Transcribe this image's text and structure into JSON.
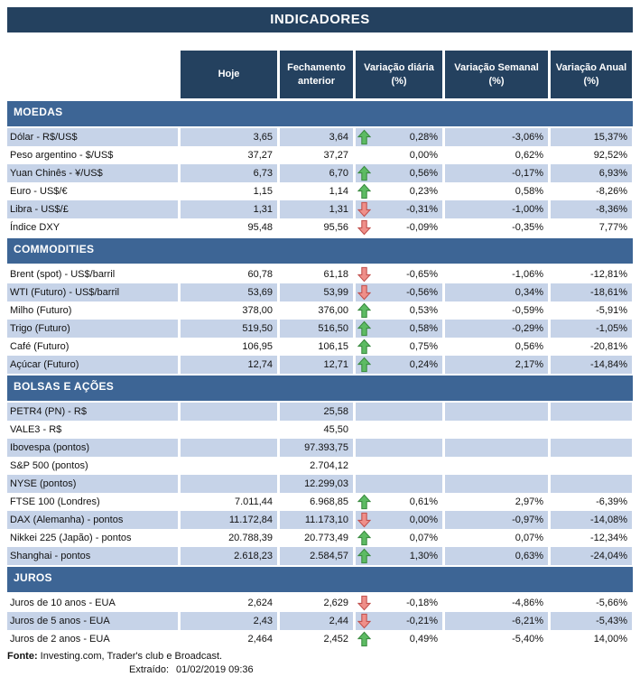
{
  "title": "INDICADORES",
  "columns": [
    "Hoje",
    "Fechamento anterior",
    "Variação diária (%)",
    "Variação Semanal (%)",
    "Variação Anual (%)"
  ],
  "sections": [
    {
      "name": "MOEDAS",
      "rows": [
        {
          "label": "Dólar - R$/US$",
          "hoje": "3,65",
          "fechamento": "3,64",
          "arrow": "up",
          "diaria": "0,28%",
          "semanal": "-3,06%",
          "anual": "15,37%"
        },
        {
          "label": "Peso argentino - $/US$",
          "hoje": "37,27",
          "fechamento": "37,27",
          "arrow": null,
          "diaria": "0,00%",
          "semanal": "0,62%",
          "anual": "92,52%"
        },
        {
          "label": "Yuan Chinês - ¥/US$",
          "hoje": "6,73",
          "fechamento": "6,70",
          "arrow": "up",
          "diaria": "0,56%",
          "semanal": "-0,17%",
          "anual": "6,93%"
        },
        {
          "label": "Euro - US$/€",
          "hoje": "1,15",
          "fechamento": "1,14",
          "arrow": "up",
          "diaria": "0,23%",
          "semanal": "0,58%",
          "anual": "-8,26%"
        },
        {
          "label": "Libra - US$/£",
          "hoje": "1,31",
          "fechamento": "1,31",
          "arrow": "down",
          "diaria": "-0,31%",
          "semanal": "-1,00%",
          "anual": "-8,36%"
        },
        {
          "label": "Índice DXY",
          "hoje": "95,48",
          "fechamento": "95,56",
          "arrow": "down",
          "diaria": "-0,09%",
          "semanal": "-0,35%",
          "anual": "7,77%"
        }
      ]
    },
    {
      "name": "COMMODITIES",
      "rows": [
        {
          "label": "Brent (spot) - US$/barril",
          "hoje": "60,78",
          "fechamento": "61,18",
          "arrow": "down",
          "diaria": "-0,65%",
          "semanal": "-1,06%",
          "anual": "-12,81%"
        },
        {
          "label": "WTI (Futuro) - US$/barril",
          "hoje": "53,69",
          "fechamento": "53,99",
          "arrow": "down",
          "diaria": "-0,56%",
          "semanal": "0,34%",
          "anual": "-18,61%"
        },
        {
          "label": "Milho (Futuro)",
          "hoje": "378,00",
          "fechamento": "376,00",
          "arrow": "up",
          "diaria": "0,53%",
          "semanal": "-0,59%",
          "anual": "-5,91%"
        },
        {
          "label": "Trigo (Futuro)",
          "hoje": "519,50",
          "fechamento": "516,50",
          "arrow": "up",
          "diaria": "0,58%",
          "semanal": "-0,29%",
          "anual": "-1,05%"
        },
        {
          "label": "Café (Futuro)",
          "hoje": "106,95",
          "fechamento": "106,15",
          "arrow": "up",
          "diaria": "0,75%",
          "semanal": "0,56%",
          "anual": "-20,81%"
        },
        {
          "label": "Açúcar (Futuro)",
          "hoje": "12,74",
          "fechamento": "12,71",
          "arrow": "up",
          "diaria": "0,24%",
          "semanal": "2,17%",
          "anual": "-14,84%"
        }
      ]
    },
    {
      "name": "BOLSAS E AÇÕES",
      "rows": [
        {
          "label": "PETR4 (PN) - R$",
          "hoje": "",
          "fechamento": "25,58",
          "arrow": null,
          "diaria": "",
          "semanal": "",
          "anual": ""
        },
        {
          "label": "VALE3 - R$",
          "hoje": "",
          "fechamento": "45,50",
          "arrow": null,
          "diaria": "",
          "semanal": "",
          "anual": ""
        },
        {
          "label": "Ibovespa (pontos)",
          "hoje": "",
          "fechamento": "97.393,75",
          "arrow": null,
          "diaria": "",
          "semanal": "",
          "anual": ""
        },
        {
          "label": "S&P 500 (pontos)",
          "hoje": "",
          "fechamento": "2.704,12",
          "arrow": null,
          "diaria": "",
          "semanal": "",
          "anual": ""
        },
        {
          "label": "NYSE (pontos)",
          "hoje": "",
          "fechamento": "12.299,03",
          "arrow": null,
          "diaria": "",
          "semanal": "",
          "anual": ""
        },
        {
          "label": "FTSE 100 (Londres)",
          "hoje": "7.011,44",
          "fechamento": "6.968,85",
          "arrow": "up",
          "diaria": "0,61%",
          "semanal": "2,97%",
          "anual": "-6,39%"
        },
        {
          "label": "DAX (Alemanha) - pontos",
          "hoje": "11.172,84",
          "fechamento": "11.173,10",
          "arrow": "down",
          "diaria": "0,00%",
          "semanal": "-0,97%",
          "anual": "-14,08%"
        },
        {
          "label": "Nikkei 225 (Japão) - pontos",
          "hoje": "20.788,39",
          "fechamento": "20.773,49",
          "arrow": "up",
          "diaria": "0,07%",
          "semanal": "0,07%",
          "anual": "-12,34%"
        },
        {
          "label": "Shanghai - pontos",
          "hoje": "2.618,23",
          "fechamento": "2.584,57",
          "arrow": "up",
          "diaria": "1,30%",
          "semanal": "0,63%",
          "anual": "-24,04%"
        }
      ]
    },
    {
      "name": "JUROS",
      "rows": [
        {
          "label": "Juros de 10 anos - EUA",
          "hoje": "2,624",
          "fechamento": "2,629",
          "arrow": "down",
          "diaria": "-0,18%",
          "semanal": "-4,86%",
          "anual": "-5,66%"
        },
        {
          "label": "Juros de 5 anos - EUA",
          "hoje": "2,43",
          "fechamento": "2,44",
          "arrow": "down",
          "diaria": "-0,21%",
          "semanal": "-6,21%",
          "anual": "-5,43%"
        },
        {
          "label": "Juros de 2 anos - EUA",
          "hoje": "2,464",
          "fechamento": "2,452",
          "arrow": "up",
          "diaria": "0,49%",
          "semanal": "-5,40%",
          "anual": "14,00%"
        }
      ]
    }
  ],
  "footer": {
    "fonte_label": "Fonte:",
    "fonte_text": " Investing.com, Trader's club e Broadcast.",
    "extraido_label": "Extraído:",
    "extraido_value": "01/02/2019 09:36"
  },
  "colors": {
    "header_navy": "#24415F",
    "section_band_blue": "#3D6595",
    "row_stripe_blue": "#C6D3E8",
    "up_arrow_fill": "#5DBB63",
    "up_arrow_stroke": "#3A8A40",
    "down_arrow_fill": "#EF8F89",
    "down_arrow_stroke": "#C0504D"
  }
}
